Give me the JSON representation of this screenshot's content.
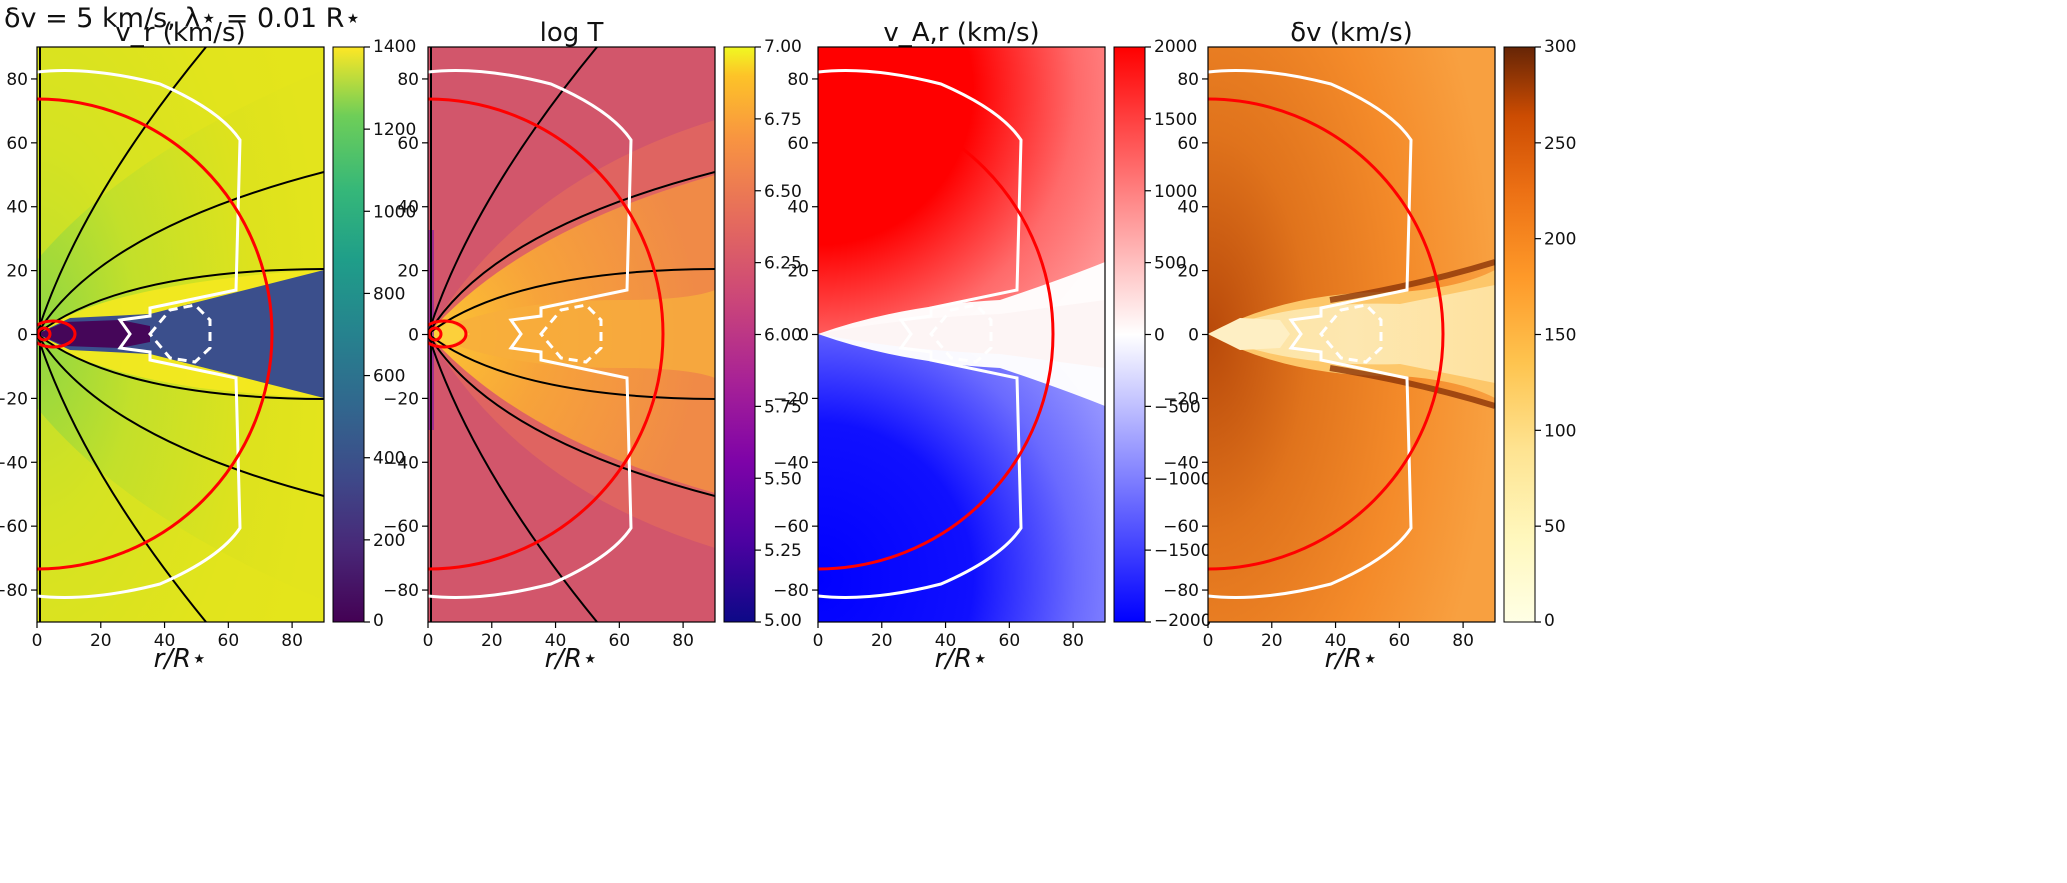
{
  "figure": {
    "title": "δv = 5 km/s, λ⋆ = 0.01 R⋆"
  },
  "chart_data": [
    {
      "type": "heatmap",
      "title": "v_r (km/s)",
      "xlabel": "r/R⋆",
      "xlim": [
        0,
        90
      ],
      "ylim": [
        -90,
        90
      ],
      "xticks": [
        "0",
        "20",
        "40",
        "60",
        "80"
      ],
      "yticks": [
        "80",
        "60",
        "40",
        "20",
        "0",
        "−20",
        "−40",
        "−60",
        "−80"
      ],
      "colormap": "viridis",
      "colorbar": {
        "range": [
          0,
          1400
        ],
        "ticks": [
          "1400",
          "1200",
          "1000",
          "800",
          "600",
          "400",
          "200",
          "0"
        ]
      },
      "overlays": [
        "field lines (black)",
        "critical surface (white)",
        "circles (red)"
      ]
    },
    {
      "type": "heatmap",
      "title": "log T",
      "xlabel": "r/R⋆",
      "xlim": [
        0,
        90
      ],
      "ylim": [
        -90,
        90
      ],
      "xticks": [
        "0",
        "20",
        "40",
        "60",
        "80"
      ],
      "yticks": [
        "80",
        "60",
        "40",
        "20",
        "0",
        "−20",
        "−40",
        "−60",
        "−80"
      ],
      "colormap": "plasma",
      "colorbar": {
        "range": [
          5.0,
          7.0
        ],
        "ticks": [
          "7.00",
          "6.75",
          "6.50",
          "6.25",
          "6.00",
          "5.75",
          "5.50",
          "5.25",
          "5.00"
        ]
      },
      "overlays": [
        "field lines (black)",
        "critical surface (white)",
        "circles (red)"
      ]
    },
    {
      "type": "heatmap",
      "title": "v_A,r (km/s)",
      "xlabel": "r/R⋆",
      "xlim": [
        0,
        90
      ],
      "ylim": [
        -90,
        90
      ],
      "xticks": [
        "0",
        "20",
        "40",
        "60",
        "80"
      ],
      "yticks": [
        "80",
        "60",
        "40",
        "20",
        "0",
        "−20",
        "−40",
        "−60",
        "−80"
      ],
      "colormap": "bwr",
      "colorbar": {
        "range": [
          -2000,
          2000
        ],
        "ticks": [
          "2000",
          "1500",
          "1000",
          "500",
          "0",
          "−500",
          "−1000",
          "−1500",
          "−2000"
        ]
      },
      "overlays": [
        "critical surface (white)",
        "circle (red)"
      ]
    },
    {
      "type": "heatmap",
      "title": "δv (km/s)",
      "xlabel": "r/R⋆",
      "xlim": [
        0,
        90
      ],
      "ylim": [
        -90,
        90
      ],
      "xticks": [
        "0",
        "20",
        "40",
        "60",
        "80"
      ],
      "yticks": [
        "80",
        "60",
        "40",
        "20",
        "0",
        "−20",
        "−40",
        "−60",
        "−80"
      ],
      "colormap": "YlOrBr",
      "colorbar": {
        "range": [
          0,
          300
        ],
        "ticks": [
          "300",
          "250",
          "200",
          "150",
          "100",
          "50",
          "0"
        ]
      },
      "overlays": [
        "critical surface (white)",
        "circle (red)"
      ]
    }
  ],
  "colors": {
    "viridis_top": "#e9e51a",
    "viridis_field": "#d1e11c",
    "viridis_green": "#8fd643",
    "viridis_sheet": "#3b3f8a",
    "viridis_low": "#440154",
    "plasma_bg": "#d2566b",
    "plasma_hot": "#f39f3a",
    "plasma_core": "#fcc233",
    "bwr_red": "#ff0000",
    "bwr_blue": "#0000ff",
    "ylorbr_bg": "#f48b2a",
    "ylorbr_dark": "#c05209",
    "ylorbr_light": "#fee3a3",
    "overlay_red": "#ff0000",
    "overlay_white": "#ffffff",
    "overlay_black": "#000000"
  }
}
